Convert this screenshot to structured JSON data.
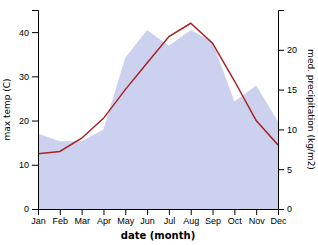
{
  "chart_data": {
    "type": "line",
    "categories": [
      "Jan",
      "Feb",
      "Mar",
      "Apr",
      "May",
      "Jun",
      "Jul",
      "Aug",
      "Sep",
      "Oct",
      "Nov",
      "Dec"
    ],
    "series": [
      {
        "type": "area",
        "color": "#b0b8e8",
        "axis": "y2",
        "values": [
          9.5,
          8.5,
          8.5,
          10.0,
          19.0,
          22.5,
          20.5,
          22.5,
          21.0,
          13.5,
          15.5,
          11.0
        ]
      },
      {
        "type": "line",
        "color": "#aa2222",
        "values": [
          12.5,
          13.0,
          16.0,
          20.5,
          27.0,
          33.0,
          39.0,
          42.0,
          37.5,
          29.0,
          20.0,
          14.5
        ]
      }
    ],
    "xlabel": "date (month)",
    "ylabel": "max temp (C)",
    "y2label": "med. precipitation (kg/m2)",
    "ylim": [
      0,
      45
    ],
    "yticks": [
      0,
      10,
      20,
      30,
      40
    ],
    "y2lim": [
      0,
      25
    ],
    "y2ticks": [
      0,
      5,
      10,
      15,
      20
    ],
    "grid": false
  }
}
